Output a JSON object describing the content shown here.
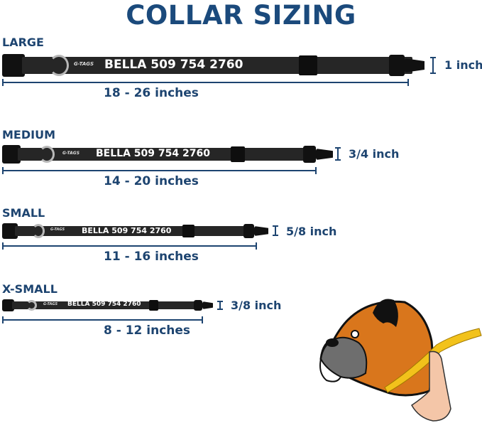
{
  "title": "COLLAR SIZING",
  "logo_text": "G-TAGS",
  "collars": [
    {
      "size": "LARGE",
      "tag_text": "BELLA 509 754 2760",
      "length": "18 - 26 inches",
      "width": "1 inch"
    },
    {
      "size": "MEDIUM",
      "tag_text": "BELLA 509 754 2760",
      "length": "14 - 20 inches",
      "width": "3/4 inch"
    },
    {
      "size": "SMALL",
      "tag_text": "BELLA 509 754 2760",
      "length": "11 - 16 inches",
      "width": "5/8 inch"
    },
    {
      "size": "X-SMALL",
      "tag_text": "BELLA 509 754 2760",
      "length": "8 - 12 inches",
      "width": "3/8 inch"
    }
  ],
  "colors": {
    "heading": "#1b4a7c",
    "collar": "#262626",
    "tape": "#f2c21b",
    "dog": "#d9761c"
  }
}
